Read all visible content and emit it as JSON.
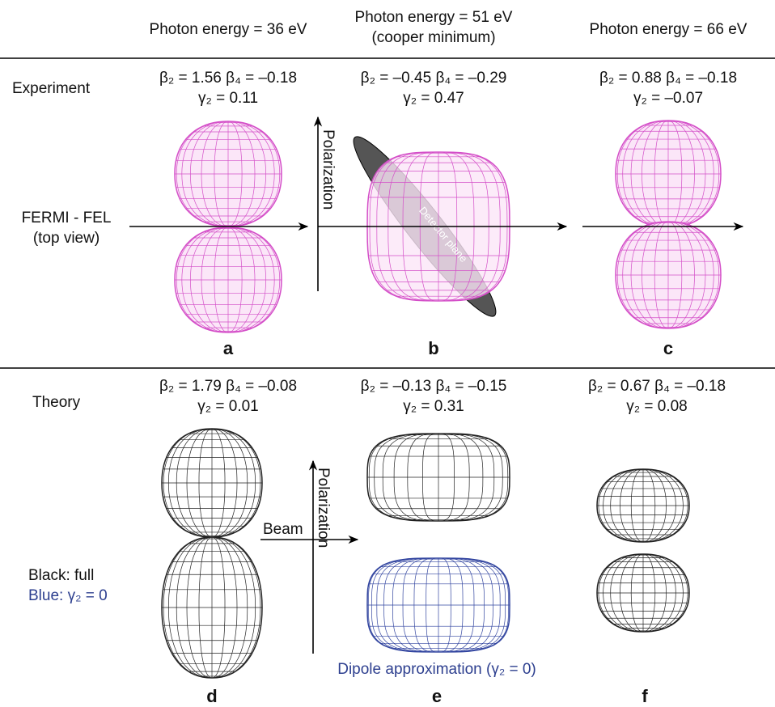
{
  "header": {
    "col1": "Photon energy = 36 eV",
    "col2": [
      "Photon energy = 51 eV",
      "(cooper minimum)"
    ],
    "col3": "Photon energy = 66 eV"
  },
  "experiment": {
    "label": "Experiment",
    "beam_label": [
      "FERMI - FEL",
      "(top view)"
    ],
    "polarization": "Polarization",
    "detector": "Detector plane",
    "panels": [
      {
        "params": "β₂ = 1.56  β₄ = –0.18",
        "gamma": "γ₂ = 0.11",
        "letter": "a"
      },
      {
        "params": "β₂ = –0.45  β₄ = –0.29",
        "gamma": "γ₂ = 0.47",
        "letter": "b"
      },
      {
        "params": "β₂ = 0.88  β₄ = –0.18",
        "gamma": "γ₂ = –0.07",
        "letter": "c"
      }
    ]
  },
  "theory": {
    "label": "Theory",
    "legend": [
      "Black: full",
      "Blue: γ₂ = 0"
    ],
    "beam": "Beam",
    "polarization": "Polarization",
    "dipole_caption": "Dipole approximation (γ₂ = 0)",
    "panels": [
      {
        "params": "β₂ = 1.79  β₄ = –0.08",
        "gamma": "γ₂ = 0.01",
        "letter": "d"
      },
      {
        "params": "β₂ = –0.13  β₄ = –0.15",
        "gamma": "γ₂ = 0.31",
        "letter": "e"
      },
      {
        "params": "β₂ = 0.67  β₄ = –0.18",
        "gamma": "γ₂ = 0.08",
        "letter": "f"
      }
    ]
  }
}
